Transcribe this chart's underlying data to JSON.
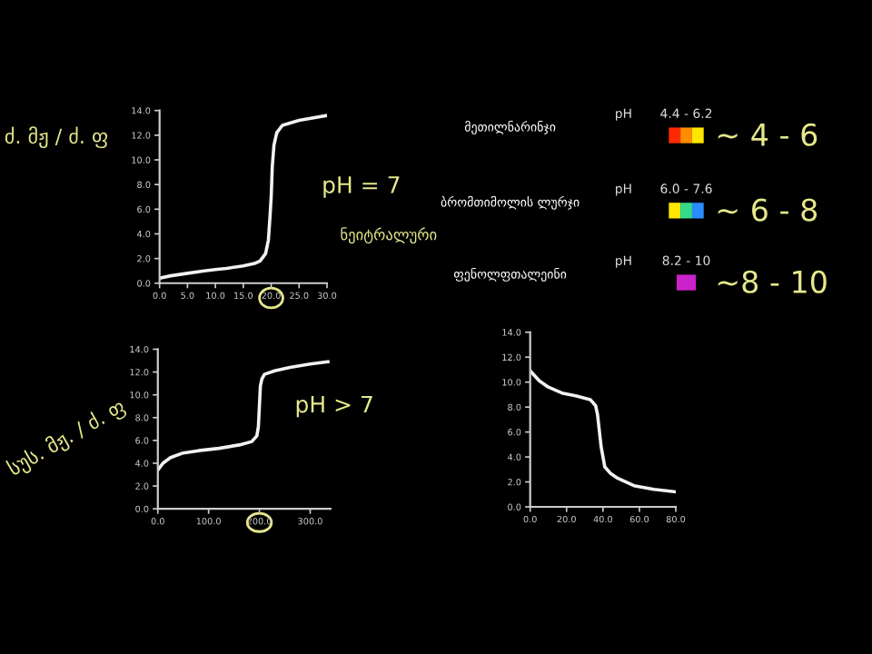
{
  "chart_data": [
    {
      "type": "line",
      "x": [
        0,
        2,
        5,
        8,
        10,
        12,
        15,
        17,
        18,
        19,
        19.5,
        19.8,
        20,
        20.2,
        20.5,
        21,
        22,
        25,
        30
      ],
      "series": [
        {
          "color": "#f2f2f2",
          "values": [
            0.4,
            0.6,
            0.8,
            1.0,
            1.1,
            1.2,
            1.4,
            1.6,
            1.8,
            2.4,
            3.5,
            5.5,
            7,
            9.5,
            11.2,
            12.2,
            12.8,
            13.2,
            13.6
          ]
        }
      ],
      "xlim": [
        0,
        30
      ],
      "xticks": [
        {
          "value": 0,
          "label": "0.0"
        },
        {
          "value": 5,
          "label": "5.0"
        },
        {
          "value": 10,
          "label": "10.0"
        },
        {
          "value": 15,
          "label": "15.0"
        },
        {
          "value": 20,
          "label": "20.0"
        },
        {
          "value": 25,
          "label": "25.0"
        },
        {
          "value": 30,
          "label": "30.0"
        }
      ],
      "ylim": [
        0,
        14
      ],
      "yticks": [
        {
          "value": 0,
          "label": "0.0"
        },
        {
          "value": 2,
          "label": "2.0"
        },
        {
          "value": 4,
          "label": "4.0"
        },
        {
          "value": 6,
          "label": "6.0"
        },
        {
          "value": 8,
          "label": "8.0"
        },
        {
          "value": 10,
          "label": "10.0"
        },
        {
          "value": 12,
          "label": "12.0"
        },
        {
          "value": 14,
          "label": "14.0"
        }
      ],
      "grid": false,
      "marker": "none",
      "line_style": "solid",
      "annotations": [
        "ძ. მჟ / ძ. ფ",
        {
          "text": "pH = 7",
          "x": 20,
          "y": 7
        },
        "ნეიტრალური"
      ]
    },
    {
      "type": "line",
      "x": [
        0,
        10,
        25,
        50,
        80,
        120,
        160,
        185,
        195,
        198,
        200,
        202,
        205,
        210,
        230,
        260,
        300,
        335
      ],
      "series": [
        {
          "color": "#f2f2f2",
          "values": [
            3.4,
            4.0,
            4.5,
            4.9,
            5.1,
            5.3,
            5.6,
            5.9,
            6.4,
            7.2,
            9,
            10.8,
            11.4,
            11.8,
            12.1,
            12.4,
            12.7,
            12.9
          ]
        }
      ],
      "xlim": [
        0,
        340
      ],
      "xticks": [
        {
          "value": 0,
          "label": "0.0"
        },
        {
          "value": 100,
          "label": "100.0"
        },
        {
          "value": 200,
          "label": "200.0"
        },
        {
          "value": 300,
          "label": "300.0"
        }
      ],
      "ylim": [
        0,
        14
      ],
      "yticks": [
        {
          "value": 0,
          "label": "0.0"
        },
        {
          "value": 2,
          "label": "2.0"
        },
        {
          "value": 4,
          "label": "4.0"
        },
        {
          "value": 6,
          "label": "6.0"
        },
        {
          "value": 8,
          "label": "8.0"
        },
        {
          "value": 10,
          "label": "10.0"
        },
        {
          "value": 12,
          "label": "12.0"
        },
        {
          "value": 14,
          "label": "14.0"
        }
      ],
      "grid": false,
      "marker": "none",
      "line_style": "solid",
      "annotations": [
        "სუს. მჟ. / ძ. ფ",
        {
          "text": "pH > 7",
          "x": 200,
          "y": 9
        }
      ]
    },
    {
      "type": "line",
      "x": [
        0,
        5,
        10,
        18,
        25,
        33,
        36,
        37,
        39,
        41,
        44,
        48,
        57,
        68,
        80
      ],
      "series": [
        {
          "color": "#f2f2f2",
          "values": [
            10.9,
            10.1,
            9.6,
            9.1,
            8.9,
            8.6,
            8.1,
            7.4,
            4.8,
            3.2,
            2.7,
            2.3,
            1.7,
            1.4,
            1.2
          ]
        }
      ],
      "xlim": [
        0,
        80
      ],
      "xticks": [
        {
          "value": 0,
          "label": "0.0"
        },
        {
          "value": 20,
          "label": "20.0"
        },
        {
          "value": 40,
          "label": "40.0"
        },
        {
          "value": 60,
          "label": "60.0"
        },
        {
          "value": 80,
          "label": "80.0"
        }
      ],
      "ylim": [
        0,
        14
      ],
      "yticks": [
        {
          "value": 0,
          "label": "0.0"
        },
        {
          "value": 2,
          "label": "2.0"
        },
        {
          "value": 4,
          "label": "4.0"
        },
        {
          "value": 6,
          "label": "6.0"
        },
        {
          "value": 8,
          "label": "8.0"
        },
        {
          "value": 10,
          "label": "10.0"
        },
        {
          "value": 12,
          "label": "12.0"
        },
        {
          "value": 14,
          "label": "14.0"
        }
      ],
      "grid": false,
      "marker": "none",
      "line_style": "solid"
    },
    {
      "type": "other",
      "annotations": [
        "მეთილნარინჯი",
        "pH",
        "4.4 - 6.2",
        "~ 4 - 6",
        "ბრომთიმოლის ლურჯი",
        "pH",
        "6.0 - 7.6",
        "~ 6 - 8",
        "ფენოლფთალეინი",
        "pH",
        "8.2 - 10",
        "~8 - 10"
      ],
      "colors": [
        [
          "#ff2a00",
          "#ff8c00",
          "#ffe600"
        ],
        [
          "#ffe600",
          "#33dd88",
          "#2a8cff"
        ],
        [
          "#cc22cc"
        ]
      ]
    }
  ]
}
